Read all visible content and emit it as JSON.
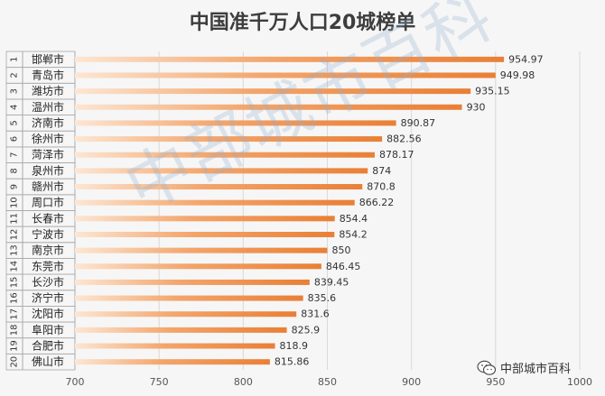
{
  "chart_data": {
    "type": "bar",
    "orientation": "horizontal",
    "title": "中国准千万人口20城榜单",
    "ranks": [
      "1",
      "2",
      "3",
      "4",
      "5",
      "6",
      "7",
      "8",
      "9",
      "10",
      "11",
      "12",
      "13",
      "14",
      "15",
      "16",
      "17",
      "18",
      "19",
      "20"
    ],
    "categories": [
      "邯郸市",
      "青岛市",
      "潍坊市",
      "温州市",
      "济南市",
      "徐州市",
      "菏泽市",
      "泉州市",
      "赣州市",
      "周口市",
      "长春市",
      "宁波市",
      "南京市",
      "东莞市",
      "长沙市",
      "济宁市",
      "沈阳市",
      "阜阳市",
      "合肥市",
      "佛山市"
    ],
    "values": [
      954.97,
      949.98,
      935.15,
      930,
      890.87,
      882.56,
      878.17,
      874,
      870.8,
      866.22,
      854.4,
      854.2,
      850,
      846.45,
      839.45,
      835.6,
      831.6,
      825.9,
      818.9,
      815.86
    ],
    "value_labels": [
      "954.97",
      "949.98",
      "935.15",
      "930",
      "890.87",
      "882.56",
      "878.17",
      "874",
      "870.8",
      "866.22",
      "854.4",
      "854.2",
      "850",
      "846.45",
      "839.45",
      "835.6",
      "831.6",
      "825.9",
      "818.9",
      "815.86"
    ],
    "xlim": [
      700,
      1000
    ],
    "x_ticks": [
      "700",
      "750",
      "800",
      "850",
      "900",
      "950",
      "1000"
    ],
    "grid": true,
    "bar_color": "#ec8a45"
  },
  "watermark": "中部城市百科",
  "brand": {
    "label": "中部城市百科",
    "icon": "wechat-icon"
  }
}
